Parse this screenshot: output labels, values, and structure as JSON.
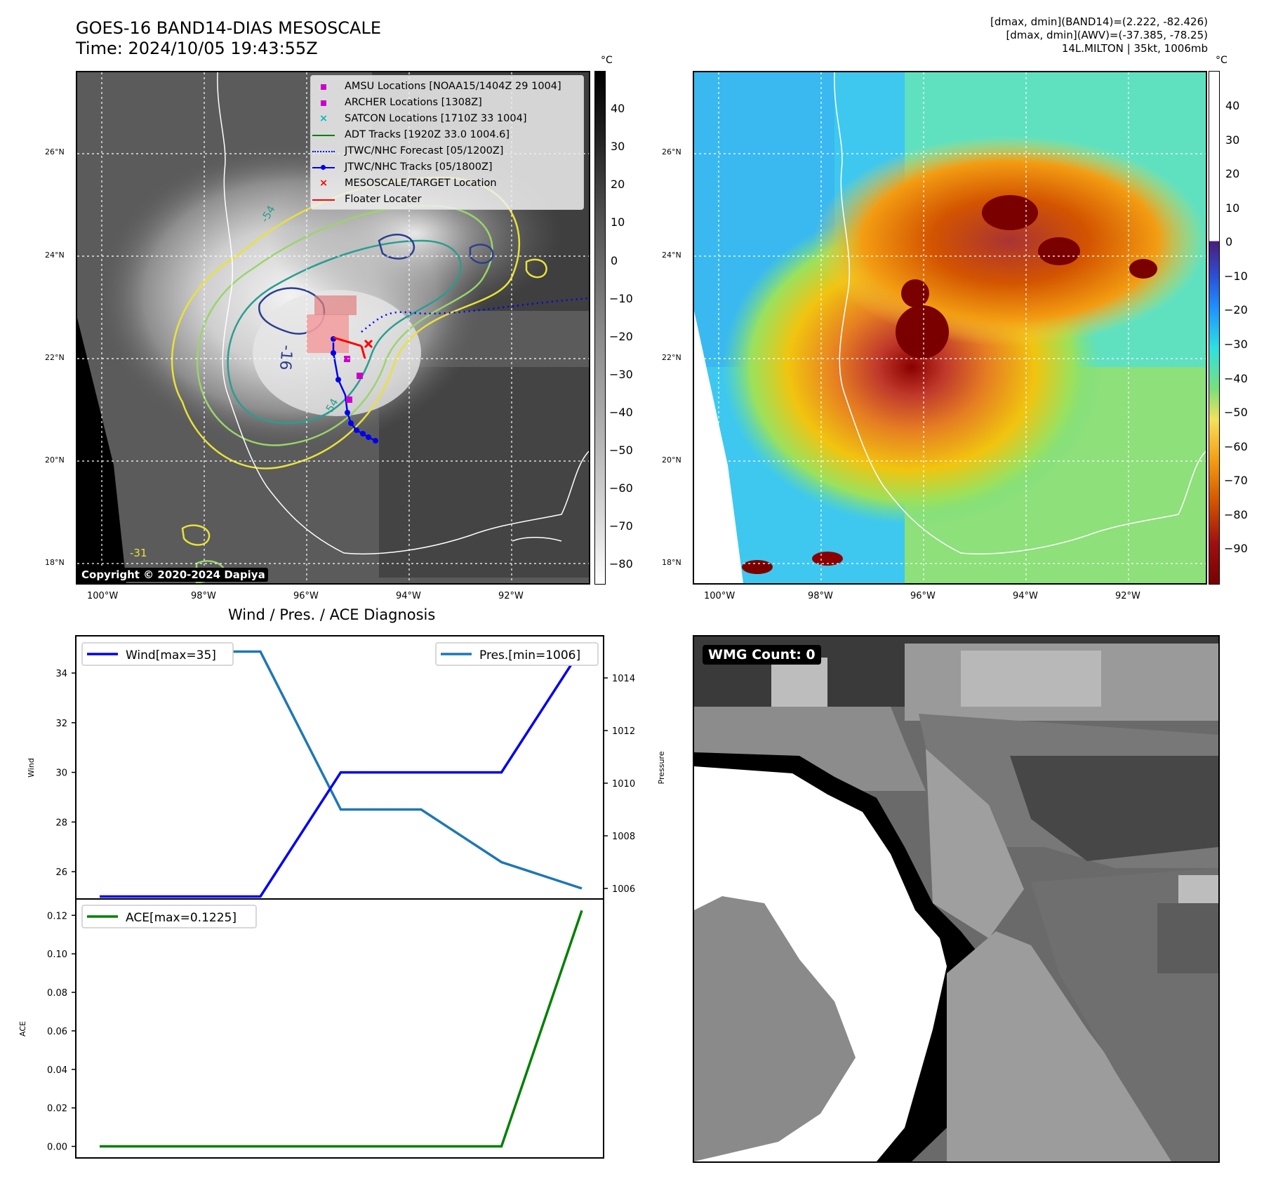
{
  "header": {
    "title_line1": "GOES-16 BAND14-DIAS MESOSCALE",
    "title_line2": "Time: 2024/10/05 19:43:55Z",
    "stats_band14": "[dmax, dmin](BAND14)=(2.222, -82.426)",
    "stats_awv": "[dmax, dmin](AWV)=(-37.385, -78.25)",
    "storm_info": "14L.MILTON | 35kt, 1006mb"
  },
  "colors": {
    "wind": "#0000ee",
    "pressure": "#1f77b4",
    "ace": "#008000",
    "forecast": "#0000ee",
    "target": "#ff0000",
    "amsu": "#cc00cc",
    "satcon": "#00bbbb",
    "adt": "#008000"
  },
  "ir_map": {
    "colorbar_unit": "°C",
    "colorbar_ticks": [
      "40",
      "30",
      "20",
      "10",
      "0",
      "−10",
      "−20",
      "−30",
      "−40",
      "−50",
      "−60",
      "−70",
      "−80"
    ],
    "lat_labels": [
      "26°N",
      "24°N",
      "22°N",
      "20°N",
      "18°N"
    ],
    "lon_labels": [
      "100°W",
      "98°W",
      "96°W",
      "94°W",
      "92°W"
    ],
    "copyright": "Copyright © 2020-2024 Dapiya",
    "contour_labels": [
      "-54",
      "-16",
      "-31",
      "-54"
    ],
    "legend": [
      {
        "label": "AMSU Locations [NOAA15/1404Z 29 1004]",
        "symbol": "square",
        "color": "#cc00cc"
      },
      {
        "label": "ARCHER Locations [1308Z]",
        "symbol": "square",
        "color": "#cc00cc"
      },
      {
        "label": "SATCON Locations [1710Z 33 1004]",
        "symbol": "x",
        "color": "#00bbbb"
      },
      {
        "label": "ADT Tracks [1920Z 33.0 1004.6]",
        "symbol": "line",
        "color": "#008000"
      },
      {
        "label": "JTWC/NHC Forecast [05/1200Z]",
        "symbol": "dotted",
        "color": "#0000ee"
      },
      {
        "label": "JTWC/NHC Tracks [05/1800Z]",
        "symbol": "line-dot",
        "color": "#0000ee"
      },
      {
        "label": "MESOSCALE/TARGET Location",
        "symbol": "x",
        "color": "#ff0000"
      },
      {
        "label": "Floater Locater",
        "symbol": "line",
        "color": "#ff0000"
      }
    ]
  },
  "awv_map": {
    "colorbar_unit": "°C",
    "colorbar_ticks": [
      "40",
      "30",
      "20",
      "10",
      "0",
      "−10",
      "−20",
      "−30",
      "−40",
      "−50",
      "−60",
      "−70",
      "−80",
      "−90"
    ],
    "lat_labels": [
      "26°N",
      "24°N",
      "22°N",
      "20°N",
      "18°N"
    ],
    "lon_labels": [
      "100°W",
      "98°W",
      "96°W",
      "94°W",
      "92°W"
    ]
  },
  "wmg": {
    "label": "WMG Count: 0"
  },
  "chart_data": [
    {
      "type": "line",
      "title": "Wind / Pres. / ACE Diagnosis",
      "ylabel": "Wind",
      "y2label": "Pressure",
      "x_index": [
        0,
        1,
        2,
        3,
        4,
        5,
        6
      ],
      "ylim": [
        24.9,
        35.5
      ],
      "y2lim": [
        1005.6,
        1015.6
      ],
      "yticks": [
        "26",
        "28",
        "30",
        "32",
        "34"
      ],
      "y2ticks": [
        "1006",
        "1008",
        "1010",
        "1012",
        "1014"
      ],
      "series": [
        {
          "name": "Wind[max=35]",
          "axis": "left",
          "values": [
            25,
            25,
            25,
            30,
            30,
            30,
            35
          ]
        },
        {
          "name": "Pres.[min=1006]",
          "axis": "right",
          "values": [
            1015,
            1015,
            1015,
            1009,
            1009,
            1007,
            1006
          ]
        }
      ]
    },
    {
      "type": "line",
      "ylabel": "ACE",
      "x_index": [
        0,
        1,
        2,
        3,
        4,
        5,
        6
      ],
      "ylim": [
        -0.006,
        0.1285
      ],
      "yticks": [
        "0.12",
        "0.10",
        "0.08",
        "0.06",
        "0.04",
        "0.02",
        "0.00"
      ],
      "series": [
        {
          "name": "ACE[max=0.1225]",
          "values": [
            0,
            0,
            0,
            0,
            0,
            0,
            0.1225
          ]
        }
      ]
    }
  ]
}
